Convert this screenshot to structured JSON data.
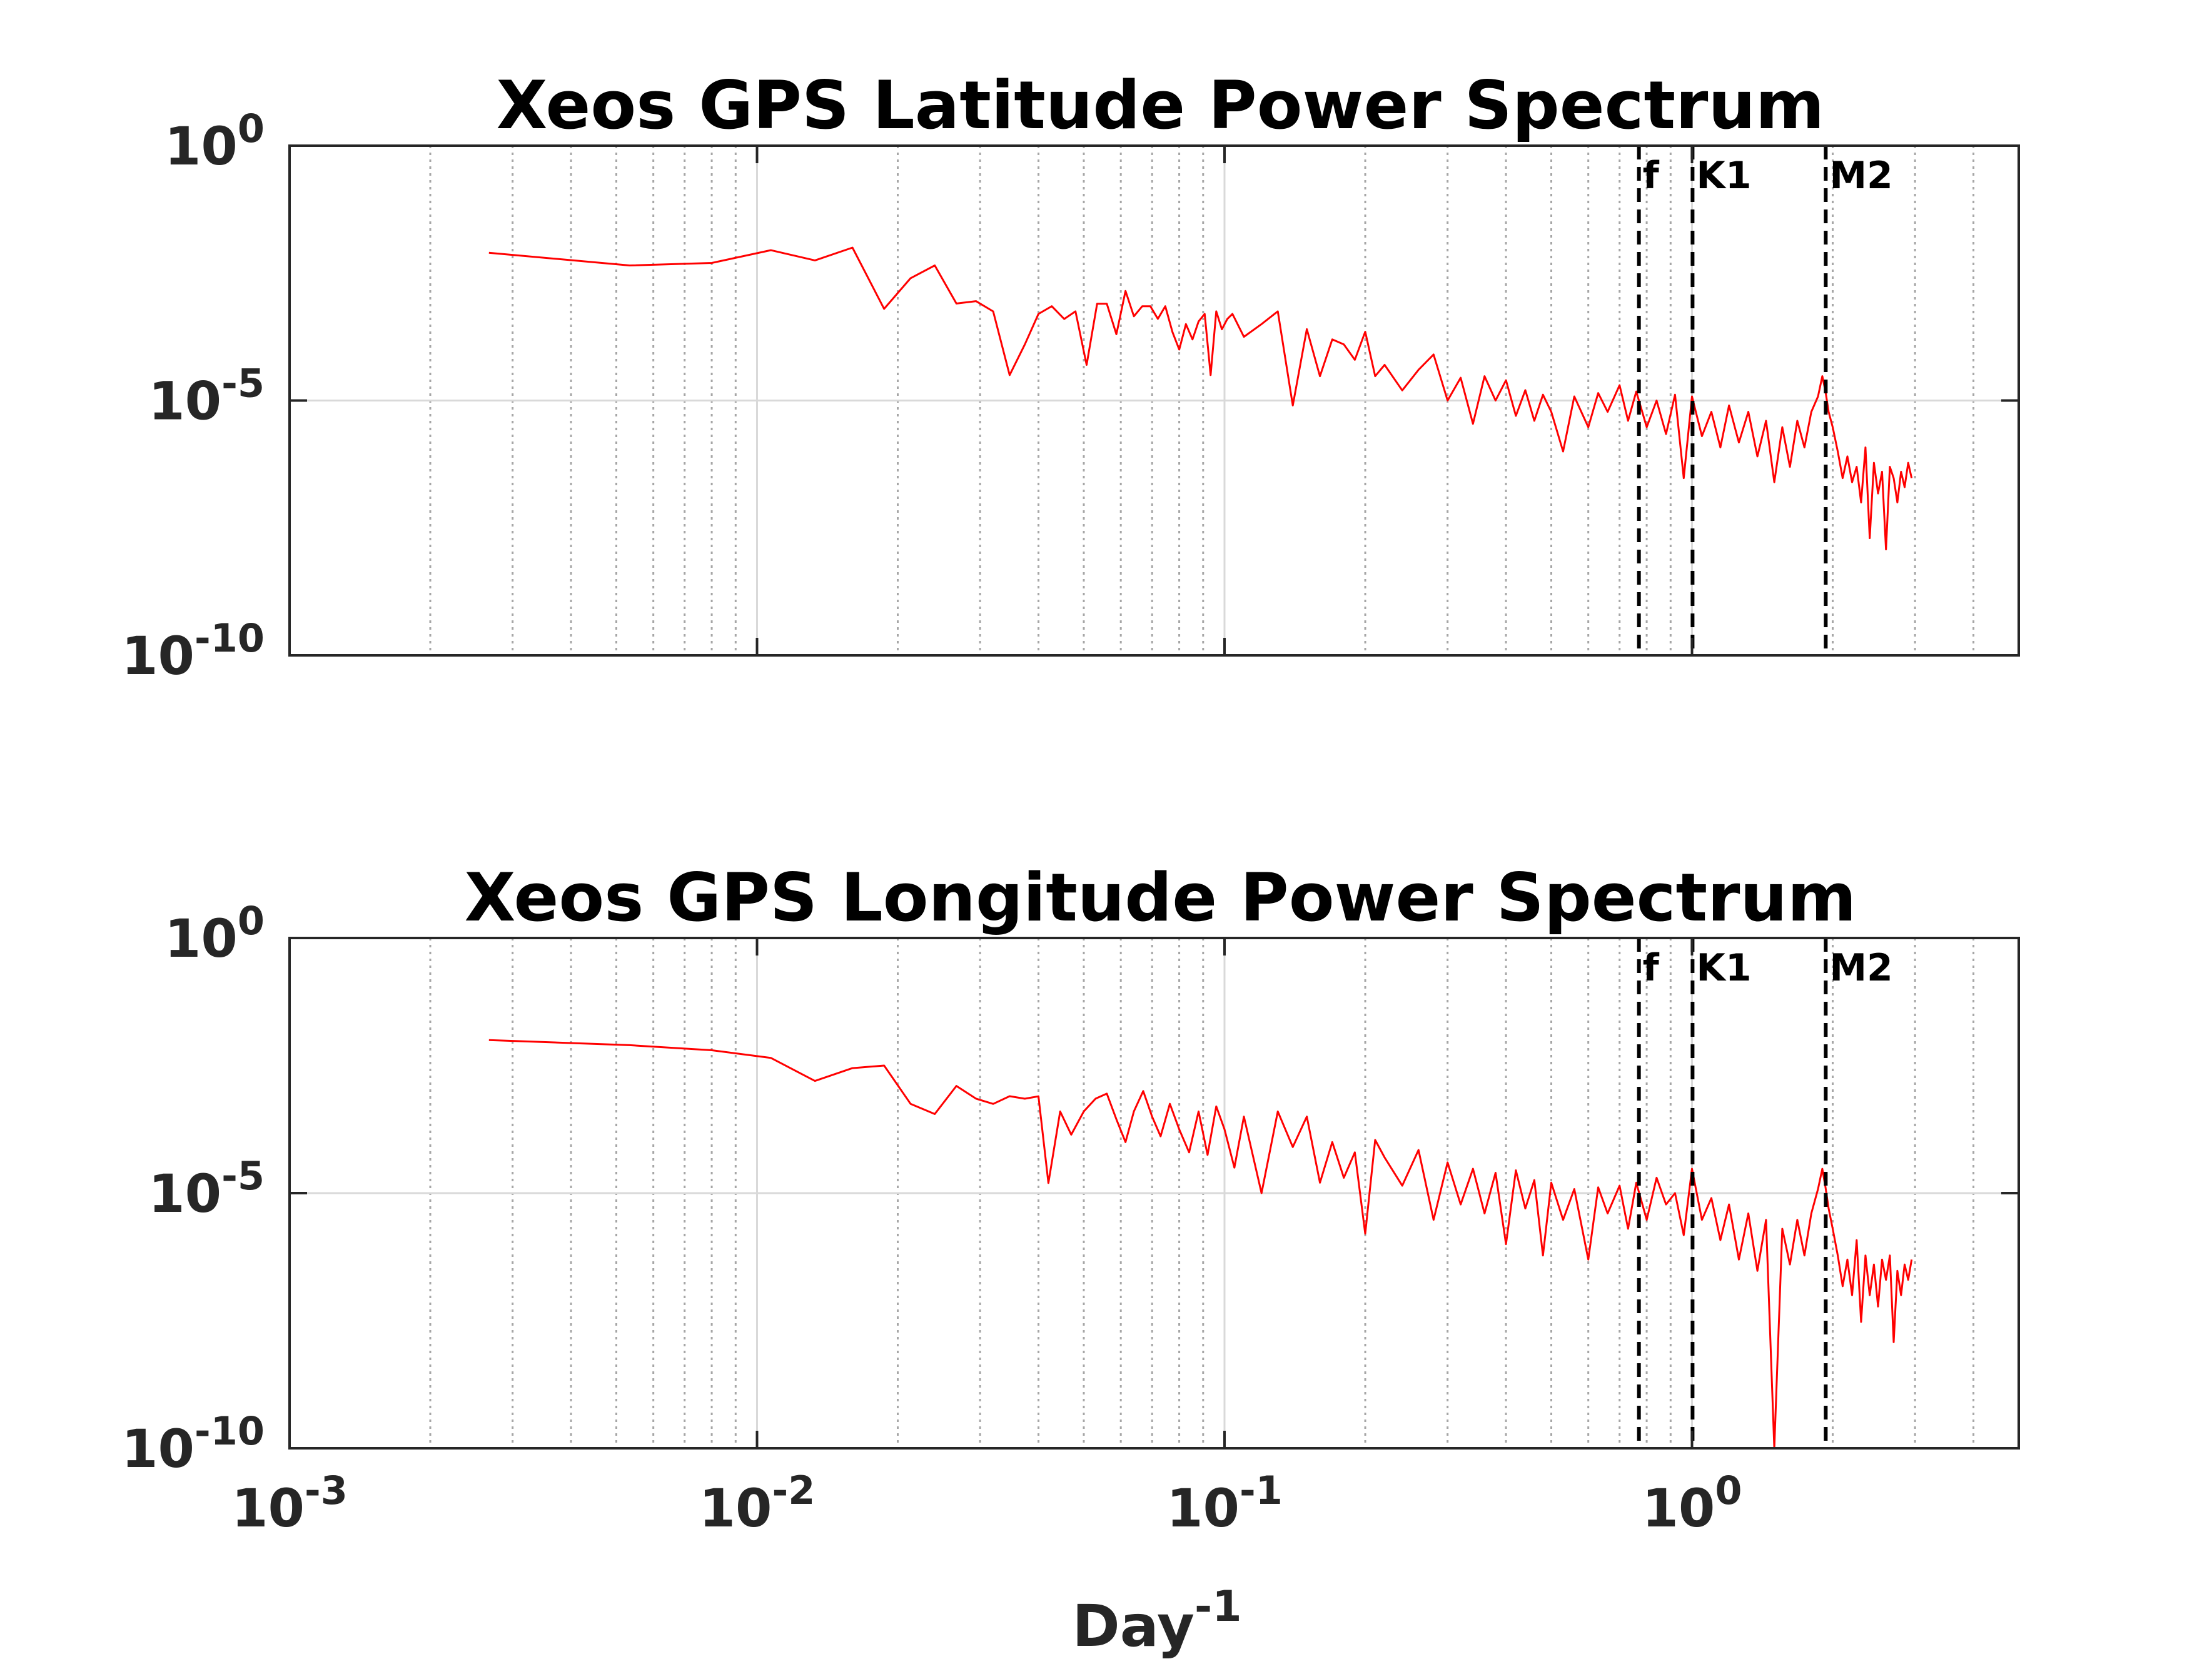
{
  "figure": {
    "xlabel_base": "Day",
    "xlabel_exp": "-1",
    "line_color": "#ff0000"
  },
  "chart_data": [
    {
      "type": "line",
      "title": "Xeos GPS Latitude Power Spectrum",
      "xlabel": "Day-1",
      "ylabel": "",
      "xscale": "log",
      "yscale": "log",
      "xlim": [
        0.001,
        5
      ],
      "ylim": [
        1e-10,
        1
      ],
      "grid": true,
      "xticks": [
        0.001,
        0.01,
        0.1,
        1
      ],
      "xtick_labels": [
        {
          "base": "10",
          "exp": "-3"
        },
        {
          "base": "10",
          "exp": "-2"
        },
        {
          "base": "10",
          "exp": "-1"
        },
        {
          "base": "10",
          "exp": "0"
        }
      ],
      "yticks": [
        1e-10,
        1e-05,
        1
      ],
      "ytick_labels": [
        {
          "base": "10",
          "exp": "-10"
        },
        {
          "base": "10",
          "exp": "-5"
        },
        {
          "base": "10",
          "exp": "0"
        }
      ],
      "annotations": [
        {
          "label": "f",
          "x": 0.77
        },
        {
          "label": "K1",
          "x": 1.0027
        },
        {
          "label": "M2",
          "x": 1.9323
        }
      ],
      "series": [
        {
          "color": "#ff0000",
          "x": [
            0.00267,
            0.00534,
            0.008,
            0.0107,
            0.0133,
            0.016,
            0.0187,
            0.0213,
            0.024,
            0.0267,
            0.0294,
            0.032,
            0.0347,
            0.0374,
            0.04,
            0.0427,
            0.0454,
            0.048,
            0.0507,
            0.0534,
            0.056,
            0.0587,
            0.0614,
            0.064,
            0.0667,
            0.0694,
            0.072,
            0.0747,
            0.0774,
            0.08,
            0.0827,
            0.0854,
            0.088,
            0.0907,
            0.0934,
            0.096,
            0.0987,
            0.1014,
            0.104,
            0.11,
            0.12,
            0.13,
            0.14,
            0.15,
            0.16,
            0.17,
            0.18,
            0.19,
            0.2,
            0.21,
            0.22,
            0.24,
            0.26,
            0.28,
            0.3,
            0.32,
            0.34,
            0.36,
            0.38,
            0.4,
            0.42,
            0.44,
            0.46,
            0.48,
            0.5,
            0.53,
            0.56,
            0.6,
            0.63,
            0.66,
            0.7,
            0.73,
            0.76,
            0.8,
            0.84,
            0.88,
            0.92,
            0.96,
            1.0,
            1.05,
            1.1,
            1.15,
            1.2,
            1.26,
            1.32,
            1.38,
            1.44,
            1.5,
            1.56,
            1.62,
            1.68,
            1.74,
            1.8,
            1.86,
            1.9,
            1.93,
            1.96,
            2.0,
            2.05,
            2.1,
            2.15,
            2.2,
            2.25,
            2.3,
            2.35,
            2.4,
            2.45,
            2.5,
            2.55,
            2.6,
            2.65,
            2.7,
            2.75,
            2.8,
            2.85,
            2.9,
            2.95
          ],
          "y": [
            0.00794,
            0.00447,
            0.00501,
            0.00891,
            0.00562,
            0.01,
            0.00063,
            0.00251,
            0.00447,
            0.0008,
            0.00089,
            0.00056,
            3.16e-05,
            0.000126,
            0.000501,
            0.000708,
            0.000398,
            0.000562,
            5e-05,
            0.000794,
            0.000794,
            0.0002,
            0.00141,
            0.00045,
            0.000708,
            0.000708,
            0.0004,
            0.000708,
            0.00022,
            0.0001,
            0.000316,
            0.000158,
            0.000356,
            0.000501,
            3.16e-05,
            0.000562,
            0.00025,
            0.000398,
            0.0005,
            0.000178,
            0.000316,
            0.000562,
            8e-06,
            0.000251,
            3e-05,
            0.000158,
            0.000126,
            6.3e-05,
            0.000224,
            3e-05,
            5e-05,
            1.58e-05,
            4e-05,
            8e-05,
            1e-05,
            2.8e-05,
            3.5e-06,
            3e-05,
            1e-05,
            2.5e-05,
            5e-06,
            1.6e-05,
            4e-06,
            1.3e-05,
            6e-06,
            1e-06,
            1.2e-05,
            3e-06,
            1.4e-05,
            6e-06,
            2e-05,
            4e-06,
            1.5e-05,
            3e-06,
            1e-05,
            2.2e-06,
            1.3e-05,
            3e-07,
            1.2e-05,
            2e-06,
            6e-06,
            1.2e-06,
            8e-06,
            1.5e-06,
            6e-06,
            8e-07,
            4e-06,
            2.5e-07,
            3e-06,
            5e-07,
            4e-06,
            1.2e-06,
            6e-06,
            1.2e-05,
            3e-05,
            1.5e-05,
            6e-06,
            3e-06,
            1e-06,
            3e-07,
            8e-07,
            2.5e-07,
            5e-07,
            1e-07,
            1.2e-06,
            2e-08,
            6e-07,
            1.5e-07,
            4e-07,
            1.2e-08,
            5e-07,
            3e-07,
            1e-07,
            4e-07,
            2e-07,
            6e-07,
            3e-07
          ]
        }
      ]
    },
    {
      "type": "line",
      "title": "Xeos GPS Longitude Power Spectrum",
      "xlabel": "Day-1",
      "ylabel": "",
      "xscale": "log",
      "yscale": "log",
      "xlim": [
        0.001,
        5
      ],
      "ylim": [
        1e-10,
        1
      ],
      "grid": true,
      "xticks": [
        0.001,
        0.01,
        0.1,
        1
      ],
      "xtick_labels": [
        {
          "base": "10",
          "exp": "-3"
        },
        {
          "base": "10",
          "exp": "-2"
        },
        {
          "base": "10",
          "exp": "-1"
        },
        {
          "base": "10",
          "exp": "0"
        }
      ],
      "yticks": [
        1e-10,
        1e-05,
        1
      ],
      "ytick_labels": [
        {
          "base": "10",
          "exp": "-10"
        },
        {
          "base": "10",
          "exp": "-5"
        },
        {
          "base": "10",
          "exp": "0"
        }
      ],
      "annotations": [
        {
          "label": "f",
          "x": 0.77
        },
        {
          "label": "K1",
          "x": 1.0027
        },
        {
          "label": "M2",
          "x": 1.9323
        }
      ],
      "series": [
        {
          "color": "#ff0000",
          "x": [
            0.00267,
            0.00534,
            0.008,
            0.0107,
            0.0133,
            0.016,
            0.0187,
            0.0213,
            0.024,
            0.0267,
            0.0294,
            0.032,
            0.0347,
            0.0374,
            0.04,
            0.042,
            0.0445,
            0.047,
            0.05,
            0.053,
            0.056,
            0.0587,
            0.0614,
            0.064,
            0.067,
            0.07,
            0.073,
            0.0764,
            0.08,
            0.084,
            0.088,
            0.092,
            0.096,
            0.1,
            0.105,
            0.11,
            0.12,
            0.13,
            0.14,
            0.15,
            0.16,
            0.17,
            0.18,
            0.19,
            0.2,
            0.21,
            0.22,
            0.24,
            0.26,
            0.28,
            0.3,
            0.32,
            0.34,
            0.36,
            0.38,
            0.4,
            0.42,
            0.44,
            0.46,
            0.48,
            0.5,
            0.53,
            0.56,
            0.6,
            0.63,
            0.66,
            0.7,
            0.73,
            0.76,
            0.8,
            0.84,
            0.88,
            0.92,
            0.96,
            1.0,
            1.05,
            1.1,
            1.15,
            1.2,
            1.26,
            1.32,
            1.38,
            1.44,
            1.5,
            1.56,
            1.62,
            1.68,
            1.74,
            1.8,
            1.86,
            1.9,
            1.93,
            1.96,
            2.0,
            2.05,
            2.1,
            2.15,
            2.2,
            2.25,
            2.3,
            2.35,
            2.4,
            2.45,
            2.5,
            2.55,
            2.6,
            2.65,
            2.7,
            2.75,
            2.8,
            2.85,
            2.9,
            2.95
          ],
          "y": [
            0.01,
            0.00794,
            0.00631,
            0.00447,
            0.00158,
            0.00282,
            0.00316,
            0.000562,
            0.000355,
            0.00126,
            0.00071,
            0.00056,
            0.000794,
            0.000708,
            0.00079,
            1.58e-05,
            0.000398,
            0.00014,
            0.0004,
            0.00071,
            0.000891,
            0.00028,
            0.0001,
            0.0004,
            0.001,
            0.000316,
            0.00013,
            0.000562,
            0.000178,
            6.3e-05,
            0.000398,
            5.6e-05,
            0.000501,
            0.000178,
            3.16e-05,
            0.000316,
            1e-05,
            0.000398,
            8e-05,
            0.000316,
            1.6e-05,
            0.0001,
            2e-05,
            6.3e-05,
            1.6e-06,
            0.00011,
            5e-05,
            1.4e-05,
            7e-05,
            3e-06,
            4e-05,
            6e-06,
            3e-05,
            4e-06,
            2.5e-05,
            1e-06,
            2.8e-05,
            5e-06,
            1.8e-05,
            6e-07,
            1.6e-05,
            3e-06,
            1.2e-05,
            5e-07,
            1.3e-05,
            4e-06,
            1.4e-05,
            2e-06,
            1.6e-05,
            3e-06,
            2e-05,
            6e-06,
            1e-05,
            1.5e-06,
            3e-05,
            3e-06,
            8e-06,
            1.2e-06,
            6e-06,
            5e-07,
            4e-06,
            3e-07,
            3e-06,
            1e-10,
            2e-06,
            4e-07,
            3e-06,
            6e-07,
            4e-06,
            1.2e-05,
            3e-05,
            1.3e-05,
            5e-06,
            2e-06,
            6e-07,
            1.5e-07,
            5e-07,
            1e-07,
            1.2e-06,
            3e-08,
            6e-07,
            1e-07,
            4e-07,
            6e-08,
            5e-07,
            2e-07,
            6e-07,
            1.2e-08,
            3e-07,
            1e-07,
            4e-07,
            2e-07,
            5e-07
          ]
        }
      ]
    }
  ]
}
